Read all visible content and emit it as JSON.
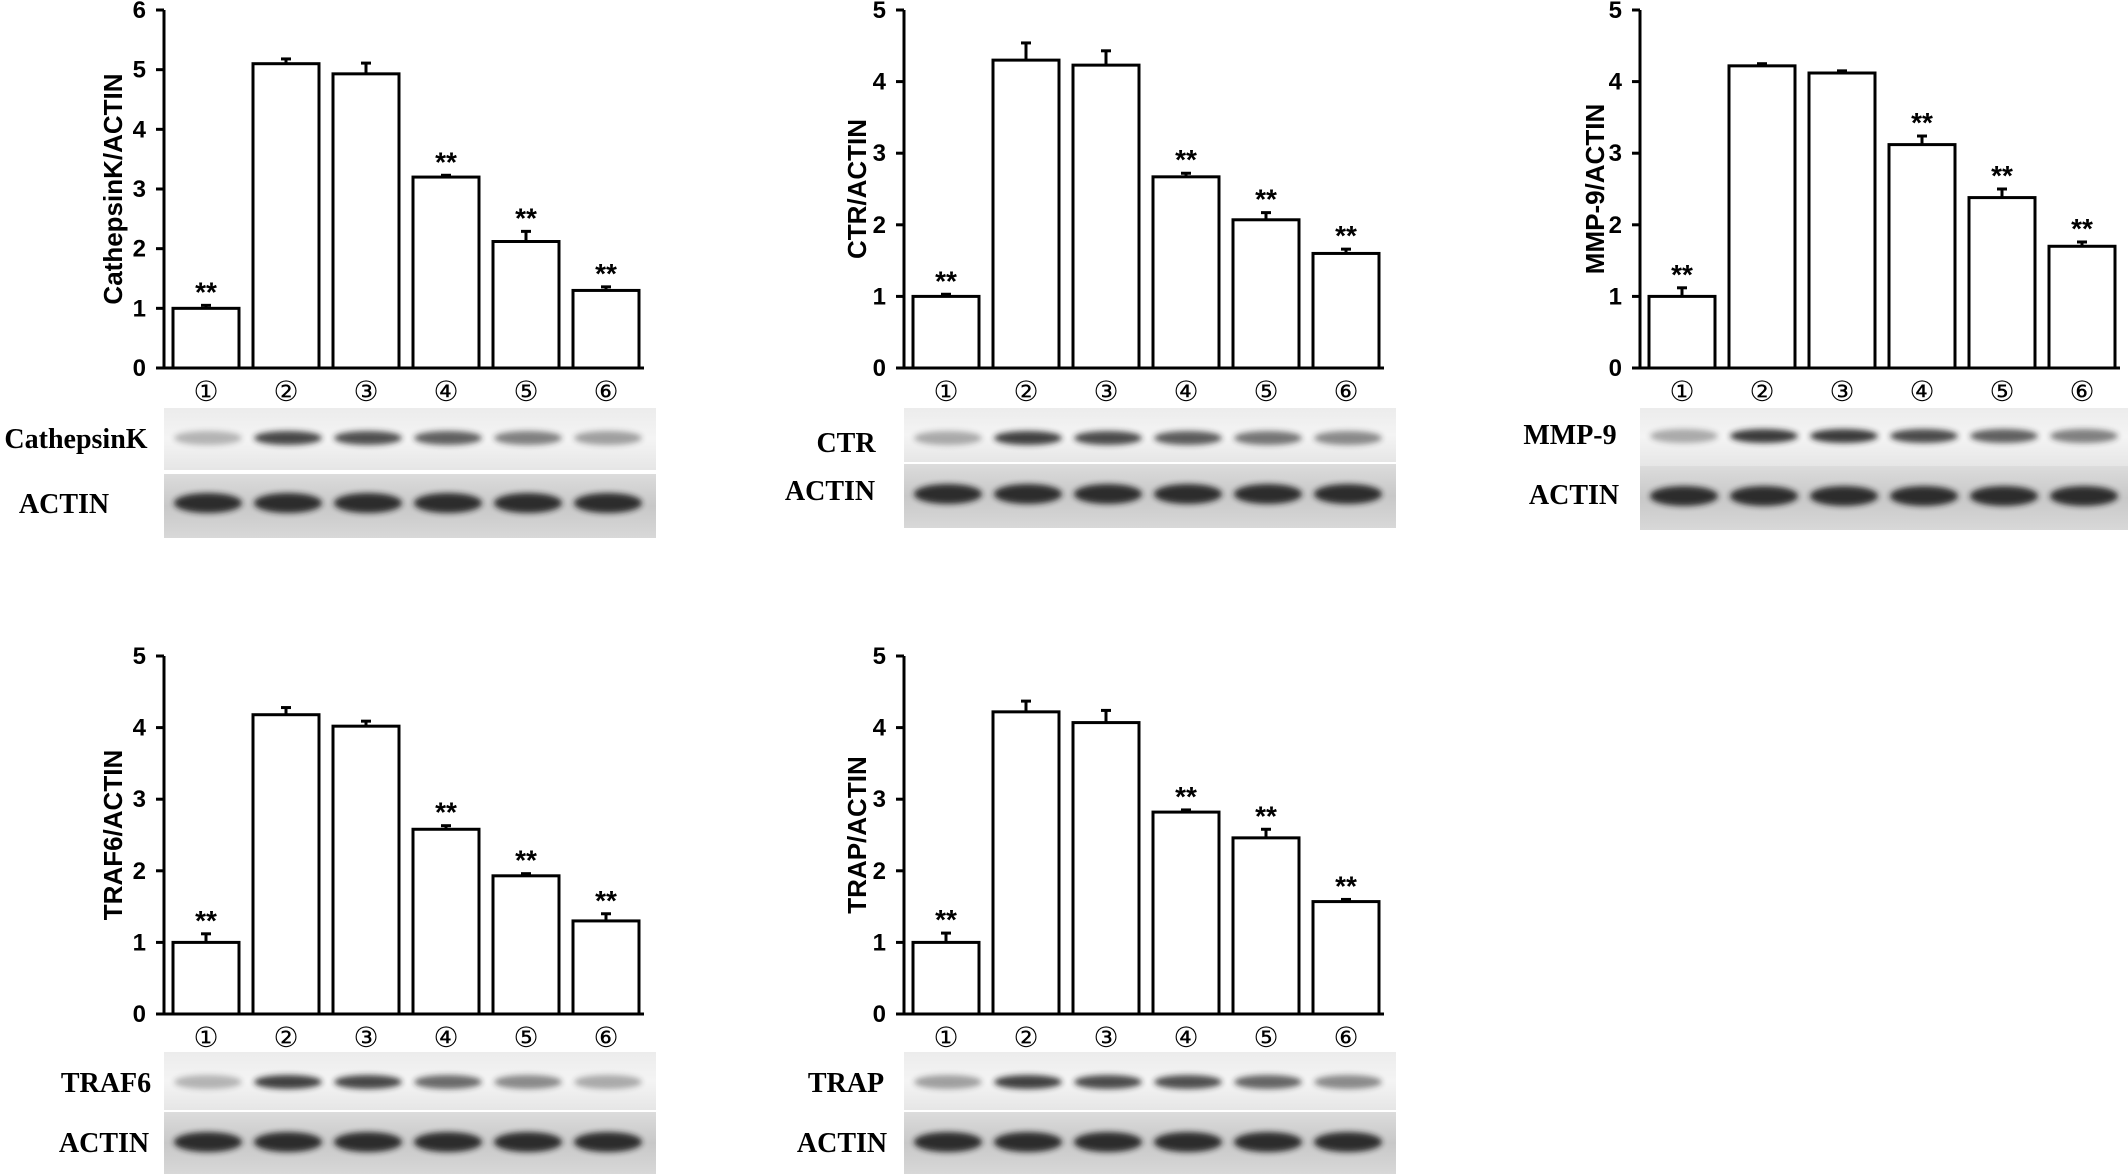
{
  "chart_data": [
    {
      "type": "bar",
      "title": "",
      "xlabel": "",
      "ylabel": "CathepsinK/ACTIN",
      "ylim": [
        0,
        6
      ],
      "yticks": [
        "0",
        "1",
        "2",
        "3",
        "4",
        "5",
        "6"
      ],
      "categories": [
        "①",
        "②",
        "③",
        "④",
        "⑤",
        "⑥"
      ],
      "values": [
        1.0,
        5.1,
        4.93,
        3.2,
        2.12,
        1.3
      ],
      "errors": [
        0.05,
        0.08,
        0.18,
        0.03,
        0.17,
        0.06
      ],
      "significance": [
        "**",
        "",
        "",
        "**",
        "**",
        "**"
      ],
      "blot_labels": [
        "CathepsinK",
        "ACTIN"
      ]
    },
    {
      "type": "bar",
      "title": "",
      "xlabel": "",
      "ylabel": "CTR/ACTIN",
      "ylim": [
        0,
        5
      ],
      "yticks": [
        "0",
        "1",
        "2",
        "3",
        "4",
        "5"
      ],
      "categories": [
        "①",
        "②",
        "③",
        "④",
        "⑤",
        "⑥"
      ],
      "values": [
        1.0,
        4.3,
        4.23,
        2.67,
        2.07,
        1.6
      ],
      "errors": [
        0.03,
        0.24,
        0.2,
        0.05,
        0.1,
        0.06
      ],
      "significance": [
        "**",
        "",
        "",
        "**",
        "**",
        "**"
      ],
      "blot_labels": [
        "CTR",
        "ACTIN"
      ]
    },
    {
      "type": "bar",
      "title": "",
      "xlabel": "",
      "ylabel": "MMP-9/ACTIN",
      "ylim": [
        0,
        5
      ],
      "yticks": [
        "0",
        "1",
        "2",
        "3",
        "4",
        "5"
      ],
      "categories": [
        "①",
        "②",
        "③",
        "④",
        "⑤",
        "⑥"
      ],
      "values": [
        1.0,
        4.22,
        4.12,
        3.12,
        2.38,
        1.7
      ],
      "errors": [
        0.12,
        0.03,
        0.03,
        0.12,
        0.12,
        0.06
      ],
      "significance": [
        "**",
        "",
        "",
        "**",
        "**",
        "**"
      ],
      "blot_labels": [
        "MMP-9",
        "ACTIN"
      ]
    },
    {
      "type": "bar",
      "title": "",
      "xlabel": "",
      "ylabel": "TRAF6/ACTIN",
      "ylim": [
        0,
        5
      ],
      "yticks": [
        "0",
        "1",
        "2",
        "3",
        "4",
        "5"
      ],
      "categories": [
        "①",
        "②",
        "③",
        "④",
        "⑤",
        "⑥"
      ],
      "values": [
        1.0,
        4.18,
        4.02,
        2.58,
        1.93,
        1.3
      ],
      "errors": [
        0.12,
        0.1,
        0.07,
        0.05,
        0.03,
        0.1
      ],
      "significance": [
        "**",
        "",
        "",
        "**",
        "**",
        "**"
      ],
      "blot_labels": [
        "TRAF6",
        "ACTIN"
      ]
    },
    {
      "type": "bar",
      "title": "",
      "xlabel": "",
      "ylabel": "TRAP/ACTIN",
      "ylim": [
        0,
        5
      ],
      "yticks": [
        "0",
        "1",
        "2",
        "3",
        "4",
        "5"
      ],
      "categories": [
        "①",
        "②",
        "③",
        "④",
        "⑤",
        "⑥"
      ],
      "values": [
        1.0,
        4.22,
        4.07,
        2.82,
        2.46,
        1.57
      ],
      "errors": [
        0.13,
        0.15,
        0.17,
        0.03,
        0.12,
        0.03
      ],
      "significance": [
        "**",
        "",
        "",
        "**",
        "**",
        "**"
      ],
      "blot_labels": [
        "TRAP",
        "ACTIN"
      ]
    }
  ],
  "blot_intensities": [
    [
      0.3,
      0.82,
      0.78,
      0.7,
      0.55,
      0.4
    ],
    [
      0.35,
      0.85,
      0.8,
      0.72,
      0.6,
      0.5
    ],
    [
      0.35,
      0.88,
      0.88,
      0.8,
      0.7,
      0.55
    ],
    [
      0.3,
      0.85,
      0.82,
      0.65,
      0.5,
      0.35
    ],
    [
      0.4,
      0.85,
      0.8,
      0.78,
      0.68,
      0.5
    ]
  ]
}
